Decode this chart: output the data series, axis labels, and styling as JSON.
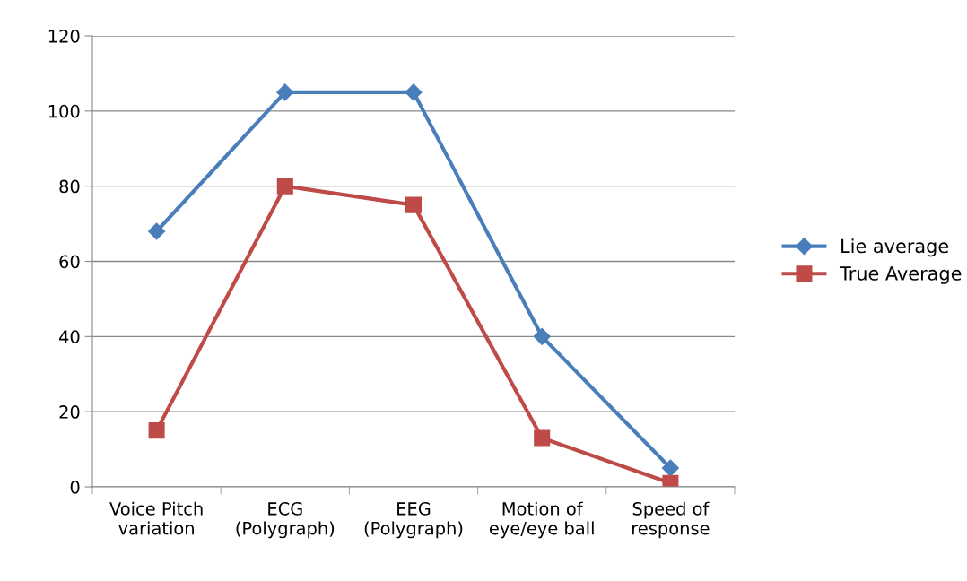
{
  "chart_data": {
    "type": "line",
    "categories": [
      "Voice Pitch\nvariation",
      "ECG\n(Polygraph)",
      "EEG\n(Polygraph)",
      "Motion of\neye/eye ball",
      "Speed of\nresponse"
    ],
    "series": [
      {
        "name": "Lie average",
        "color": "#4a7ebb",
        "values": [
          68,
          105,
          105,
          40,
          5
        ],
        "marker": "diamond"
      },
      {
        "name": "True Average",
        "color": "#be4b48",
        "values": [
          15,
          80,
          75,
          13,
          1
        ],
        "marker": "square"
      }
    ],
    "ylim": [
      0,
      120
    ],
    "yticks": [
      0,
      20,
      40,
      60,
      80,
      100,
      120
    ],
    "grid": "y",
    "legend": "right",
    "line_style": "solid"
  }
}
